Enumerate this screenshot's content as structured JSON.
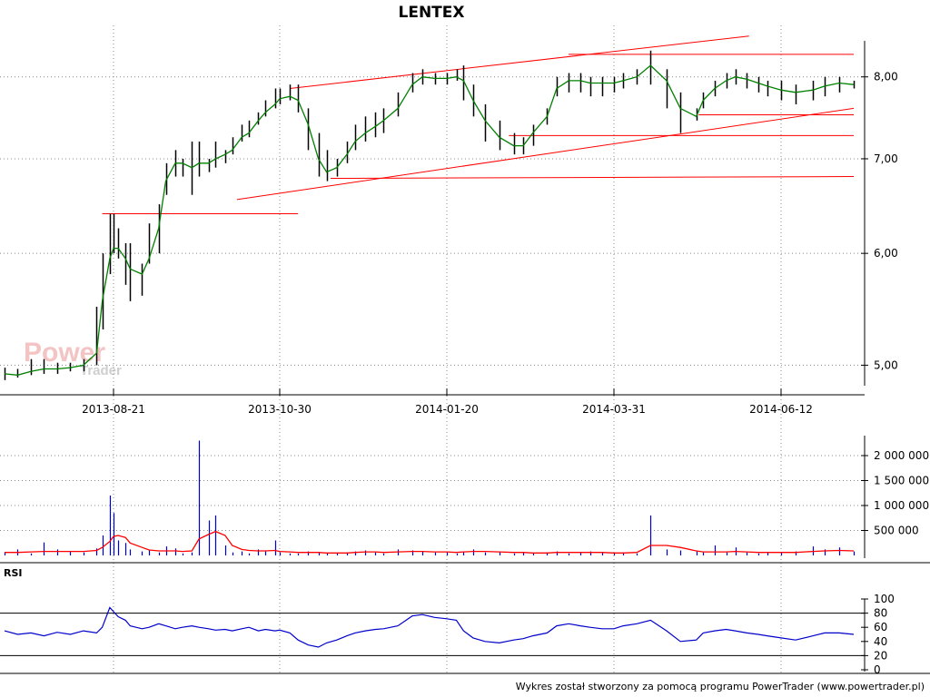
{
  "title": "LENTEX",
  "watermark": {
    "line1": "Power",
    "line2": "Trader"
  },
  "credit": "Wykres został stworzony za pomocą programu PowerTrader (www.powertrader.pl)",
  "colors": {
    "candles": "#000000",
    "moving_average": "#008000",
    "trendlines": "#ff0000",
    "volume": "#0000cc",
    "volume_average": "#ff0000",
    "rsi": "#0000cc",
    "grid": "#888888"
  },
  "chart_data": [
    {
      "type": "line",
      "panel": "price",
      "title": "LENTEX",
      "y_scale": "log",
      "ylim": [
        4.8,
        8.7
      ],
      "yticks": [
        "5,00",
        "6,00",
        "7,00",
        "8,00"
      ],
      "xticks": [
        "2013-08-21",
        "2013-10-30",
        "2014-01-20",
        "2014-03-31",
        "2014-06-12"
      ],
      "x": [
        "2013-06-24",
        "2013-07-01",
        "2013-07-08",
        "2013-07-15",
        "2013-07-22",
        "2013-07-29",
        "2013-08-05",
        "2013-08-12",
        "2013-08-15",
        "2013-08-19",
        "2013-08-21",
        "2013-08-23",
        "2013-08-26",
        "2013-08-28",
        "2013-09-02",
        "2013-09-05",
        "2013-09-09",
        "2013-09-12",
        "2013-09-16",
        "2013-09-19",
        "2013-09-23",
        "2013-09-26",
        "2013-09-30",
        "2013-10-03",
        "2013-10-07",
        "2013-10-10",
        "2013-10-14",
        "2013-10-17",
        "2013-10-21",
        "2013-10-24",
        "2013-10-28",
        "2013-10-30",
        "2013-11-04",
        "2013-11-08",
        "2013-11-13",
        "2013-11-18",
        "2013-11-22",
        "2013-11-27",
        "2013-12-02",
        "2013-12-06",
        "2013-12-11",
        "2013-12-16",
        "2013-12-20",
        "2013-12-27",
        "2014-01-03",
        "2014-01-08",
        "2014-01-14",
        "2014-01-20",
        "2014-01-24",
        "2014-01-27",
        "2014-01-31",
        "2014-02-05",
        "2014-02-11",
        "2014-02-17",
        "2014-02-21",
        "2014-02-25",
        "2014-03-03",
        "2014-03-07",
        "2014-03-12",
        "2014-03-17",
        "2014-03-21",
        "2014-03-26",
        "2014-03-31",
        "2014-04-04",
        "2014-04-10",
        "2014-04-16",
        "2014-04-23",
        "2014-04-29",
        "2014-05-06",
        "2014-05-09",
        "2014-05-14",
        "2014-05-19",
        "2014-05-23",
        "2014-05-28",
        "2014-06-02",
        "2014-06-06",
        "2014-06-12",
        "2014-06-17",
        "2014-06-23",
        "2014-06-27",
        "2014-07-02",
        "2014-07-07"
      ],
      "high": [
        4.98,
        4.97,
        5.05,
        5.05,
        5.02,
        5.02,
        5.05,
        5.5,
        6.0,
        6.4,
        6.4,
        6.25,
        6.1,
        6.1,
        5.9,
        6.3,
        6.5,
        6.95,
        7.1,
        7.0,
        7.2,
        7.2,
        7.0,
        7.2,
        7.1,
        7.25,
        7.4,
        7.45,
        7.55,
        7.7,
        7.85,
        7.85,
        7.9,
        7.9,
        7.6,
        7.3,
        7.1,
        7.0,
        7.2,
        7.4,
        7.5,
        7.55,
        7.6,
        7.8,
        8.05,
        8.1,
        8.05,
        8.05,
        8.1,
        8.15,
        7.9,
        7.65,
        7.45,
        7.3,
        7.25,
        7.4,
        7.6,
        8.0,
        8.05,
        8.05,
        8.0,
        8.0,
        8.0,
        8.05,
        8.1,
        8.35,
        8.1,
        7.8,
        7.6,
        7.8,
        7.95,
        8.05,
        8.1,
        8.05,
        8.0,
        7.95,
        7.95,
        7.9,
        7.95,
        8.0,
        8.0,
        7.95
      ],
      "low": [
        4.88,
        4.9,
        4.92,
        4.93,
        4.93,
        4.95,
        4.95,
        5.0,
        5.3,
        5.8,
        6.0,
        5.95,
        5.7,
        5.55,
        5.6,
        5.9,
        6.0,
        6.6,
        6.8,
        6.8,
        6.6,
        6.8,
        6.85,
        6.9,
        6.95,
        7.05,
        7.2,
        7.25,
        7.4,
        7.5,
        7.6,
        7.65,
        7.7,
        7.55,
        7.1,
        6.8,
        6.75,
        6.8,
        6.95,
        7.1,
        7.2,
        7.25,
        7.3,
        7.5,
        7.8,
        7.9,
        7.9,
        7.9,
        7.95,
        7.7,
        7.5,
        7.2,
        7.1,
        7.05,
        7.05,
        7.15,
        7.4,
        7.75,
        7.8,
        7.8,
        7.75,
        7.75,
        7.8,
        7.85,
        7.9,
        7.9,
        7.6,
        7.3,
        7.45,
        7.6,
        7.75,
        7.85,
        7.9,
        7.85,
        7.8,
        7.75,
        7.7,
        7.65,
        7.7,
        7.75,
        7.8,
        7.85
      ],
      "ma": [
        4.93,
        4.92,
        4.95,
        4.97,
        4.97,
        4.98,
        5.0,
        5.1,
        5.55,
        5.95,
        6.05,
        6.05,
        5.95,
        5.85,
        5.8,
        5.95,
        6.25,
        6.75,
        6.95,
        6.95,
        6.9,
        6.95,
        6.95,
        7.0,
        7.05,
        7.1,
        7.25,
        7.3,
        7.45,
        7.55,
        7.65,
        7.72,
        7.75,
        7.7,
        7.4,
        7.0,
        6.85,
        6.9,
        7.05,
        7.2,
        7.3,
        7.38,
        7.45,
        7.6,
        7.9,
        8.0,
        7.98,
        7.98,
        8.0,
        7.95,
        7.7,
        7.45,
        7.25,
        7.15,
        7.15,
        7.3,
        7.5,
        7.85,
        7.95,
        7.95,
        7.92,
        7.92,
        7.92,
        7.95,
        8.0,
        8.15,
        7.95,
        7.6,
        7.5,
        7.7,
        7.85,
        7.95,
        8.0,
        7.97,
        7.92,
        7.88,
        7.83,
        7.8,
        7.83,
        7.88,
        7.92,
        7.9
      ]
    },
    {
      "type": "bar",
      "panel": "volume",
      "ylim": [
        0,
        2400000
      ],
      "yticks": [
        "500 000",
        "1 000 000",
        "1 500 000",
        "2 000 000"
      ],
      "values": [
        60000,
        120000,
        40000,
        260000,
        120000,
        80000,
        60000,
        140000,
        400000,
        1200000,
        850000,
        300000,
        250000,
        120000,
        80000,
        100000,
        60000,
        180000,
        140000,
        40000,
        60000,
        2300000,
        700000,
        800000,
        200000,
        60000,
        80000,
        40000,
        120000,
        80000,
        300000,
        60000,
        40000,
        40000,
        80000,
        60000,
        40000,
        40000,
        60000,
        80000,
        100000,
        60000,
        40000,
        120000,
        100000,
        80000,
        60000,
        60000,
        40000,
        80000,
        120000,
        60000,
        80000,
        40000,
        60000,
        40000,
        60000,
        80000,
        40000,
        60000,
        80000,
        60000,
        40000,
        60000,
        40000,
        800000,
        120000,
        100000,
        80000,
        60000,
        200000,
        60000,
        160000,
        60000,
        40000,
        60000,
        60000,
        80000,
        180000,
        120000,
        160000,
        80000
      ],
      "average": [
        60000,
        60000,
        70000,
        80000,
        80000,
        80000,
        80000,
        100000,
        160000,
        280000,
        380000,
        400000,
        360000,
        250000,
        160000,
        110000,
        90000,
        90000,
        90000,
        80000,
        90000,
        330000,
        420000,
        480000,
        400000,
        200000,
        120000,
        100000,
        90000,
        90000,
        100000,
        80000,
        70000,
        60000,
        60000,
        60000,
        50000,
        50000,
        50000,
        60000,
        70000,
        70000,
        60000,
        70000,
        80000,
        80000,
        70000,
        70000,
        60000,
        70000,
        80000,
        80000,
        70000,
        60000,
        60000,
        50000,
        50000,
        60000,
        60000,
        60000,
        60000,
        60000,
        50000,
        50000,
        60000,
        200000,
        200000,
        160000,
        90000,
        70000,
        70000,
        70000,
        80000,
        70000,
        60000,
        60000,
        60000,
        60000,
        80000,
        90000,
        100000,
        90000
      ]
    },
    {
      "type": "line",
      "panel": "rsi",
      "title": "RSI",
      "ylim": [
        0,
        100
      ],
      "yticks": [
        "0",
        "20",
        "40",
        "60",
        "80",
        "100"
      ],
      "levels": [
        20,
        80
      ],
      "values": [
        55,
        50,
        52,
        48,
        53,
        50,
        55,
        52,
        60,
        88,
        82,
        75,
        70,
        62,
        58,
        60,
        65,
        62,
        58,
        60,
        62,
        60,
        58,
        56,
        57,
        55,
        58,
        60,
        55,
        57,
        55,
        56,
        52,
        42,
        35,
        32,
        38,
        42,
        48,
        52,
        55,
        57,
        58,
        62,
        76,
        78,
        74,
        72,
        70,
        55,
        45,
        40,
        38,
        42,
        44,
        48,
        52,
        62,
        65,
        62,
        60,
        58,
        58,
        62,
        65,
        70,
        55,
        40,
        42,
        52,
        55,
        57,
        55,
        52,
        50,
        48,
        45,
        42,
        48,
        52,
        52,
        50
      ]
    }
  ]
}
